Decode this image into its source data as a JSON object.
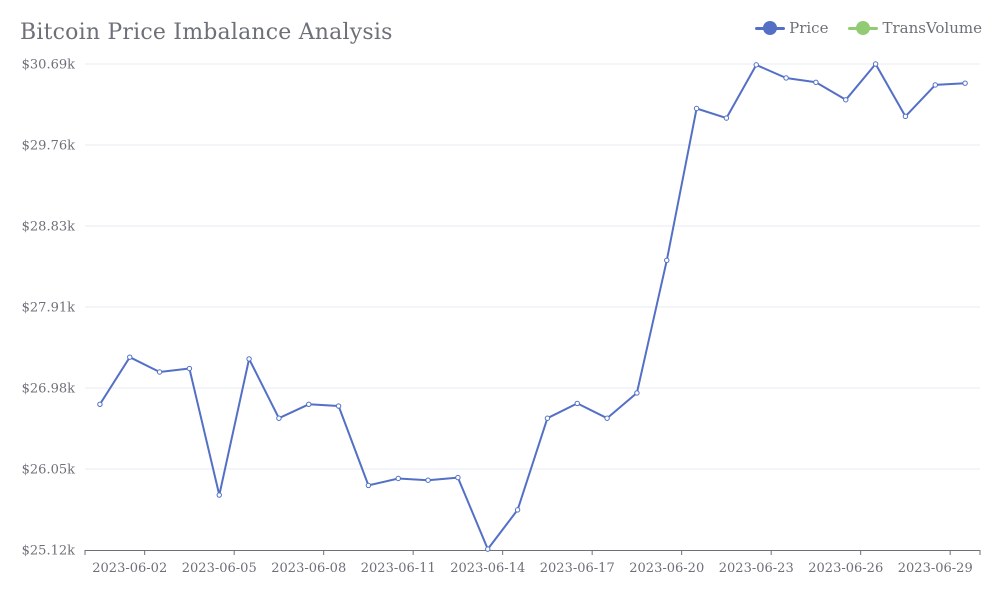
{
  "chart_data": {
    "type": "line",
    "title": "Bitcoin Price Imbalance Analysis",
    "legend": {
      "placement": "top-right",
      "entries": [
        "Price",
        "TransVolume"
      ]
    },
    "colors": {
      "Price": "#5470c6",
      "TransVolume": "#91cc75",
      "grid": "#e9ebf0",
      "axis": "#6e7079",
      "text": "#6e7079"
    },
    "grid": true,
    "ylim": [
      25120,
      30690
    ],
    "yticks": [
      "$25.12k",
      "$26.05k",
      "$26.98k",
      "$27.91k",
      "$28.83k",
      "$29.76k",
      "$30.69k"
    ],
    "xticks": [
      "2023-06-02",
      "2023-06-05",
      "2023-06-08",
      "2023-06-11",
      "2023-06-14",
      "2023-06-17",
      "2023-06-20",
      "2023-06-23",
      "2023-06-26",
      "2023-06-29"
    ],
    "x": [
      "2023-06-01",
      "2023-06-02",
      "2023-06-03",
      "2023-06-04",
      "2023-06-05",
      "2023-06-06",
      "2023-06-07",
      "2023-06-08",
      "2023-06-09",
      "2023-06-10",
      "2023-06-11",
      "2023-06-12",
      "2023-06-13",
      "2023-06-14",
      "2023-06-15",
      "2023-06-16",
      "2023-06-17",
      "2023-06-18",
      "2023-06-19",
      "2023-06-20",
      "2023-06-21",
      "2023-06-22",
      "2023-06-23",
      "2023-06-24",
      "2023-06-25",
      "2023-06-26",
      "2023-06-27",
      "2023-06-28",
      "2023-06-29",
      "2023-06-30"
    ],
    "series": [
      {
        "name": "Price",
        "values": [
          26790,
          27330,
          27160,
          27200,
          25750,
          27310,
          26630,
          26790,
          26770,
          25860,
          25940,
          25920,
          25950,
          25130,
          25580,
          26630,
          26800,
          26630,
          26920,
          28440,
          30180,
          30070,
          30680,
          30530,
          30480,
          30280,
          30690,
          30090,
          30450,
          30470
        ]
      }
    ]
  }
}
